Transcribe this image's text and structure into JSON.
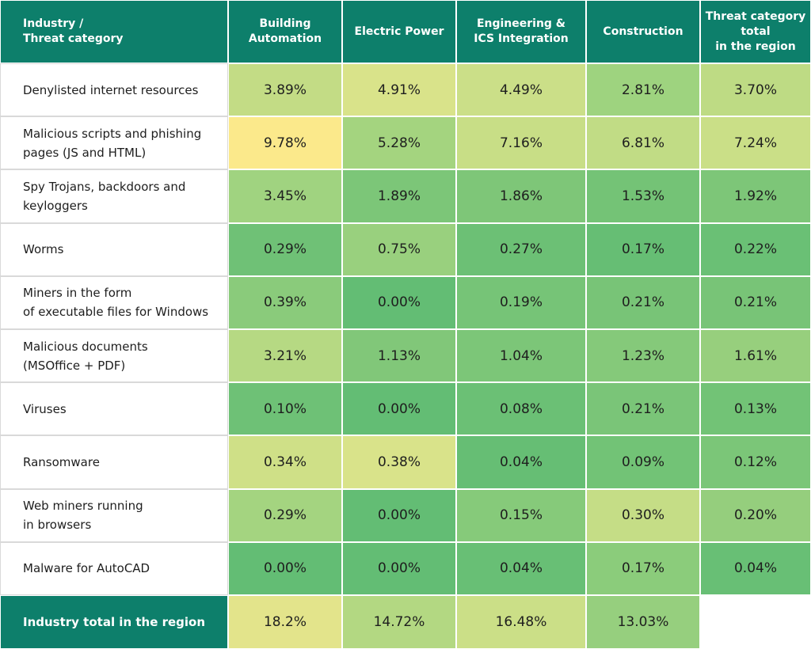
{
  "table": {
    "header": [
      "Industry /\nThreat category",
      "Building\nAutomation",
      "Electric Power",
      "Engineering &\nICS Integration",
      "Construction",
      "Threat category\ntotal\nin the region"
    ],
    "rows": [
      {
        "label": "Denylisted internet resources",
        "cells": [
          "3.89%",
          "4.91%",
          "4.49%",
          "2.81%",
          "3.70%"
        ],
        "fills": [
          "#c3dc85",
          "#d9e38a",
          "#cbdf88",
          "#9ed37f",
          "#bedb84"
        ]
      },
      {
        "label": "Malicious scripts and phishing\npages (JS and HTML)",
        "cells": [
          "9.78%",
          "5.28%",
          "7.16%",
          "6.81%",
          "7.24%"
        ],
        "fills": [
          "#fbe98b",
          "#a4d47f",
          "#c8de86",
          "#c1dc85",
          "#cadf87"
        ]
      },
      {
        "label": "Spy Trojans, backdoors and\nkeyloggers",
        "cells": [
          "3.45%",
          "1.89%",
          "1.86%",
          "1.53%",
          "1.92%"
        ],
        "fills": [
          "#a0d380",
          "#7cc678",
          "#7ec678",
          "#74c376",
          "#7dc678"
        ]
      },
      {
        "label": "Worms",
        "cells": [
          "0.29%",
          "0.75%",
          "0.27%",
          "0.17%",
          "0.22%"
        ],
        "fills": [
          "#6fc176",
          "#99d07e",
          "#6cc075",
          "#66be74",
          "#6ac075"
        ]
      },
      {
        "label": "Miners in the form\nof executable files for Windows",
        "cells": [
          "0.39%",
          "0.00%",
          "0.19%",
          "0.21%",
          "0.21%"
        ],
        "fills": [
          "#8acb7b",
          "#63bd74",
          "#76c477",
          "#78c477",
          "#78c477"
        ]
      },
      {
        "label": "Malicious documents\n(MSOffice + PDF)",
        "cells": [
          "3.21%",
          "1.13%",
          "1.04%",
          "1.23%",
          "1.61%"
        ],
        "fills": [
          "#b6d983",
          "#81c779",
          "#7cc678",
          "#85c97a",
          "#97cf7d"
        ]
      },
      {
        "label": "Viruses",
        "cells": [
          "0.10%",
          "0.00%",
          "0.08%",
          "0.21%",
          "0.13%"
        ],
        "fills": [
          "#6ec176",
          "#63bd74",
          "#6bc075",
          "#7ac578",
          "#72c376"
        ]
      },
      {
        "label": "Ransomware",
        "cells": [
          "0.34%",
          "0.38%",
          "0.04%",
          "0.09%",
          "0.12%"
        ],
        "fills": [
          "#cfe087",
          "#d9e38a",
          "#66be74",
          "#72c376",
          "#7bc678"
        ]
      },
      {
        "label": "Web miners running\nin browsers",
        "cells": [
          "0.29%",
          "0.00%",
          "0.15%",
          "0.30%",
          "0.20%"
        ],
        "fills": [
          "#a4d480",
          "#63bd74",
          "#86ca7a",
          "#c5dd86",
          "#95ce7d"
        ]
      },
      {
        "label": "Malware for AutoCAD",
        "cells": [
          "0.00%",
          "0.00%",
          "0.04%",
          "0.17%",
          "0.04%"
        ],
        "fills": [
          "#63bd74",
          "#63bd74",
          "#68bf75",
          "#8bcc7b",
          "#68bf75"
        ]
      }
    ],
    "footer": {
      "label": "Industry total in the region",
      "cells": [
        "18.2%",
        "14.72%",
        "16.48%",
        "13.03%"
      ],
      "fills": [
        "#e3e48b",
        "#b3d882",
        "#cbdf87",
        "#96cf7e"
      ]
    }
  }
}
